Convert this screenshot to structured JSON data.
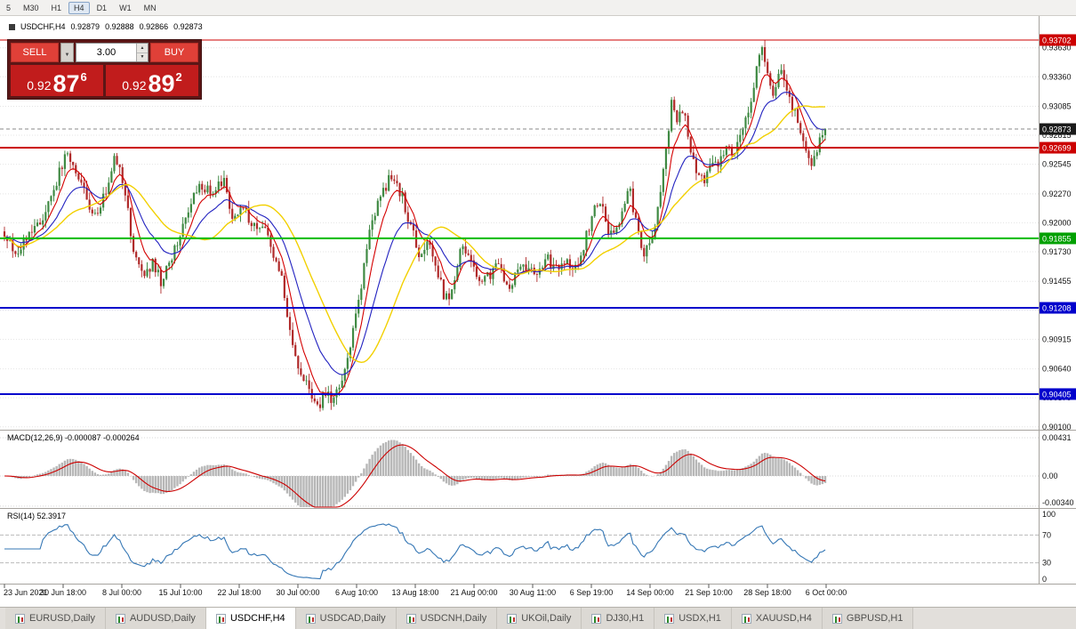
{
  "toolbar": {
    "timeframes": [
      {
        "label": "5",
        "active": false
      },
      {
        "label": "M30",
        "active": false
      },
      {
        "label": "H1",
        "active": false
      },
      {
        "label": "H4",
        "active": true
      },
      {
        "label": "D1",
        "active": false
      },
      {
        "label": "W1",
        "active": false
      },
      {
        "label": "MN",
        "active": false
      }
    ]
  },
  "chart_header": {
    "symbol": "USDCHF,H4",
    "open": "0.92879",
    "high": "0.92888",
    "low": "0.92866",
    "close": "0.92873"
  },
  "trade_panel": {
    "sell_label": "SELL",
    "buy_label": "BUY",
    "volume": "3.00",
    "sell_price": {
      "small": "0.92",
      "big": "87",
      "sup": "6"
    },
    "buy_price": {
      "small": "0.92",
      "big": "89",
      "sup": "2"
    }
  },
  "chart_data": {
    "type": "candlestick",
    "symbol": "USDCHF",
    "timeframe": "H4",
    "current_price": 0.92873,
    "ylim": [
      0.901,
      0.9393
    ],
    "n_bars": 300,
    "close_path_anchors": [
      [
        0.0,
        0.9192
      ],
      [
        0.013,
        0.9166
      ],
      [
        0.028,
        0.9188
      ],
      [
        0.043,
        0.92
      ],
      [
        0.059,
        0.9228
      ],
      [
        0.076,
        0.9268
      ],
      [
        0.086,
        0.925
      ],
      [
        0.097,
        0.9232
      ],
      [
        0.108,
        0.9205
      ],
      [
        0.122,
        0.9226
      ],
      [
        0.135,
        0.9262
      ],
      [
        0.146,
        0.9235
      ],
      [
        0.157,
        0.9175
      ],
      [
        0.168,
        0.9148
      ],
      [
        0.181,
        0.9162
      ],
      [
        0.191,
        0.9145
      ],
      [
        0.205,
        0.9172
      ],
      [
        0.222,
        0.9208
      ],
      [
        0.238,
        0.9235
      ],
      [
        0.254,
        0.9228
      ],
      [
        0.267,
        0.9238
      ],
      [
        0.278,
        0.9205
      ],
      [
        0.292,
        0.9212
      ],
      [
        0.306,
        0.9195
      ],
      [
        0.317,
        0.9202
      ],
      [
        0.328,
        0.9172
      ],
      [
        0.338,
        0.9148
      ],
      [
        0.349,
        0.9095
      ],
      [
        0.36,
        0.9062
      ],
      [
        0.371,
        0.9045
      ],
      [
        0.382,
        0.9028
      ],
      [
        0.392,
        0.9045
      ],
      [
        0.4,
        0.9032
      ],
      [
        0.411,
        0.9052
      ],
      [
        0.422,
        0.9085
      ],
      [
        0.432,
        0.913
      ],
      [
        0.443,
        0.9185
      ],
      [
        0.457,
        0.9225
      ],
      [
        0.47,
        0.9242
      ],
      [
        0.483,
        0.9228
      ],
      [
        0.494,
        0.92
      ],
      [
        0.505,
        0.9172
      ],
      [
        0.516,
        0.9182
      ],
      [
        0.527,
        0.9158
      ],
      [
        0.537,
        0.9128
      ],
      [
        0.548,
        0.9142
      ],
      [
        0.557,
        0.9178
      ],
      [
        0.568,
        0.9162
      ],
      [
        0.581,
        0.9148
      ],
      [
        0.591,
        0.9152
      ],
      [
        0.602,
        0.9162
      ],
      [
        0.613,
        0.9135
      ],
      [
        0.624,
        0.9152
      ],
      [
        0.635,
        0.9158
      ],
      [
        0.649,
        0.9148
      ],
      [
        0.659,
        0.9168
      ],
      [
        0.67,
        0.9158
      ],
      [
        0.684,
        0.9165
      ],
      [
        0.695,
        0.9155
      ],
      [
        0.706,
        0.9178
      ],
      [
        0.717,
        0.9212
      ],
      [
        0.725,
        0.9225
      ],
      [
        0.734,
        0.9192
      ],
      [
        0.744,
        0.9185
      ],
      [
        0.753,
        0.9215
      ],
      [
        0.762,
        0.923
      ],
      [
        0.771,
        0.9195
      ],
      [
        0.779,
        0.9168
      ],
      [
        0.788,
        0.9185
      ],
      [
        0.797,
        0.9215
      ],
      [
        0.805,
        0.9258
      ],
      [
        0.813,
        0.9315
      ],
      [
        0.819,
        0.9295
      ],
      [
        0.827,
        0.9308
      ],
      [
        0.836,
        0.9268
      ],
      [
        0.844,
        0.9248
      ],
      [
        0.853,
        0.9238
      ],
      [
        0.862,
        0.9262
      ],
      [
        0.87,
        0.9252
      ],
      [
        0.879,
        0.9272
      ],
      [
        0.888,
        0.9262
      ],
      [
        0.897,
        0.9282
      ],
      [
        0.906,
        0.9305
      ],
      [
        0.915,
        0.9335
      ],
      [
        0.922,
        0.9362
      ],
      [
        0.929,
        0.934
      ],
      [
        0.937,
        0.9322
      ],
      [
        0.944,
        0.9345
      ],
      [
        0.951,
        0.9332
      ],
      [
        0.959,
        0.931
      ],
      [
        0.967,
        0.9295
      ],
      [
        0.976,
        0.9272
      ],
      [
        0.984,
        0.9248
      ],
      [
        0.99,
        0.9268
      ],
      [
        1.0,
        0.92873
      ]
    ],
    "horizontal_lines": [
      {
        "price": 0.93702,
        "color": "#cc0000",
        "width": 1
      },
      {
        "price": 0.92699,
        "color": "#cc0000",
        "width": 2
      },
      {
        "price": 0.91855,
        "color": "#00bb00",
        "width": 2
      },
      {
        "price": 0.91208,
        "color": "#0000cc",
        "width": 2
      },
      {
        "price": 0.90405,
        "color": "#0000cc",
        "width": 2
      }
    ],
    "moving_averages": [
      {
        "period": 7,
        "type": "ema",
        "color": "#d40000"
      },
      {
        "period": 18,
        "type": "ema",
        "color": "#2222c0"
      },
      {
        "period": 30,
        "type": "sma",
        "color": "#f2d000"
      }
    ],
    "indicators": [
      {
        "name": "MACD",
        "label": "MACD(12,26,9) -0.000087 -0.000264",
        "scale": [
          {
            "label": "0.00431",
            "v": 0.00431
          },
          {
            "label": "0.00",
            "v": 0
          },
          {
            "label": "-0.00340",
            "v": -0.0034
          }
        ]
      },
      {
        "name": "RSI",
        "label": "RSI(14) 52.3917",
        "scale": [
          {
            "label": "100",
            "v": 100
          },
          {
            "label": "70",
            "v": 70
          },
          {
            "label": "30",
            "v": 30
          },
          {
            "label": "0",
            "v": 0
          }
        ]
      }
    ],
    "price_scale": [
      "0.93630",
      "0.93360",
      "0.93085",
      "0.92815",
      "0.92545",
      "0.92270",
      "0.92000",
      "0.91730",
      "0.91455",
      "0.91185",
      "0.90915",
      "0.90640",
      "0.90370",
      "0.90100"
    ],
    "price_tags": [
      {
        "value": "0.93702",
        "price": 0.93702,
        "color": "#cc0000"
      },
      {
        "value": "0.92873",
        "price": 0.92873,
        "color": "#1a1a1a"
      },
      {
        "value": "0.92699",
        "price": 0.92699,
        "color": "#cc0000"
      },
      {
        "value": "0.91855",
        "price": 0.91855,
        "color": "#00a000"
      },
      {
        "value": "0.91208",
        "price": 0.91208,
        "color": "#0000cc"
      },
      {
        "value": "0.90405",
        "price": 0.90405,
        "color": "#0000cc"
      }
    ],
    "time_labels": [
      "23 Jun 2021",
      "30 Jun 18:00",
      "8 Jul 00:00",
      "15 Jul 10:00",
      "22 Jul 18:00",
      "30 Jul 00:00",
      "6 Aug 10:00",
      "13 Aug 18:00",
      "21 Aug 00:00",
      "30 Aug 11:00",
      "6 Sep 19:00",
      "14 Sep 00:00",
      "21 Sep 10:00",
      "28 Sep 18:00",
      "6 Oct 00:00"
    ]
  },
  "tabs": [
    {
      "label": "EURUSD,Daily",
      "active": false
    },
    {
      "label": "AUDUSD,Daily",
      "active": false
    },
    {
      "label": "USDCHF,H4",
      "active": true
    },
    {
      "label": "USDCAD,Daily",
      "active": false
    },
    {
      "label": "USDCNH,Daily",
      "active": false
    },
    {
      "label": "UKOil,Daily",
      "active": false
    },
    {
      "label": "DJ30,H1",
      "active": false
    },
    {
      "label": "USDX,H1",
      "active": false
    },
    {
      "label": "XAUUSD,H4",
      "active": false
    },
    {
      "label": "GBPUSD,H1",
      "active": false
    }
  ]
}
